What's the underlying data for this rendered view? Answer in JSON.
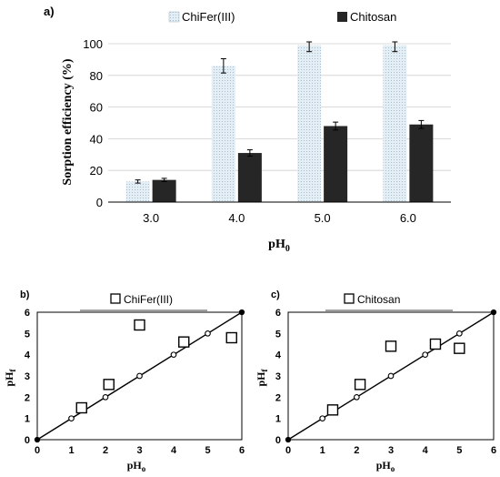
{
  "colors": {
    "chifer": "#e4eef5",
    "chifer_dots": "#9bb3c7",
    "chitosan": "#262626",
    "axis": "#000000",
    "grid": "#cfcfcf",
    "point_fill": "#ffffff"
  },
  "chart_data": [
    {
      "id": "a",
      "panel_label": "a)",
      "type": "bar",
      "ylabel": "Sorption efficiency (%)",
      "xlabel": "pH",
      "xlabel_sub": "0",
      "ylim": [
        0,
        100
      ],
      "yticks": [
        0,
        20,
        40,
        60,
        80,
        100
      ],
      "grid": true,
      "legend_position": "top",
      "categories": [
        "3.0",
        "4.0",
        "5.0",
        "6.0"
      ],
      "series": [
        {
          "name": "ChiFer(III)",
          "values": [
            13,
            86,
            99,
            99
          ],
          "errors": [
            1,
            4.5,
            4,
            4
          ]
        },
        {
          "name": "Chitosan",
          "values": [
            14,
            31,
            48,
            49
          ],
          "errors": [
            1,
            2,
            2.5,
            2.5
          ]
        }
      ]
    },
    {
      "id": "b",
      "panel_label": "b)",
      "type": "scatter",
      "xlabel": "pH",
      "xlabel_sub": "o",
      "ylabel": "pH",
      "ylabel_sub": "f",
      "xlim": [
        0,
        6
      ],
      "ylim": [
        0,
        6
      ],
      "ticks": [
        0,
        1,
        2,
        3,
        4,
        5,
        6
      ],
      "legend_position": "top",
      "series": [
        {
          "name": "ChiFer(III)",
          "x": [
            1.3,
            2.1,
            3.0,
            4.3,
            5.7
          ],
          "y": [
            1.5,
            2.6,
            5.4,
            4.6,
            4.8
          ]
        }
      ],
      "reference": {
        "x": [
          0,
          1,
          2,
          3,
          4,
          5,
          6
        ],
        "y": [
          0,
          1,
          2,
          3,
          4,
          5,
          6
        ]
      }
    },
    {
      "id": "c",
      "panel_label": "c)",
      "type": "scatter",
      "xlabel": "pH",
      "xlabel_sub": "o",
      "ylabel": "pH",
      "ylabel_sub": "f",
      "xlim": [
        0,
        6
      ],
      "ylim": [
        0,
        6
      ],
      "ticks": [
        0,
        1,
        2,
        3,
        4,
        5,
        6
      ],
      "legend_position": "top",
      "series": [
        {
          "name": "Chitosan",
          "x": [
            1.3,
            2.1,
            3.0,
            4.3,
            5.0
          ],
          "y": [
            1.4,
            2.6,
            4.4,
            4.5,
            4.3
          ]
        }
      ],
      "reference": {
        "x": [
          0,
          1,
          2,
          3,
          4,
          5,
          6
        ],
        "y": [
          0,
          1,
          2,
          3,
          4,
          5,
          6
        ]
      }
    }
  ]
}
